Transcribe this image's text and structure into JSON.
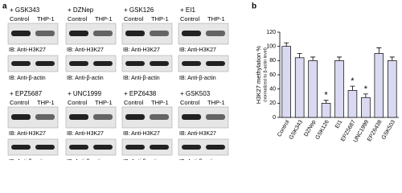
{
  "panel_a": {
    "label": "a",
    "blots": [
      {
        "treatment": "+ GSK343",
        "lanes": [
          "Control",
          "THP-1"
        ],
        "probe_top": "IB: Anti-H3K27",
        "probe_bottom": "IB: Anti-β-actin"
      },
      {
        "treatment": "+ DZNep",
        "lanes": [
          "Control",
          "THP-1"
        ],
        "probe_top": "IB: Anti-H3K27",
        "probe_bottom": "IB: Anti-β-actin"
      },
      {
        "treatment": "+ GSK126",
        "lanes": [
          "Control",
          "THP-1"
        ],
        "probe_top": "IB: Anti-H3K27",
        "probe_bottom": "IB: Anti-β-actin"
      },
      {
        "treatment": "+ EI1",
        "lanes": [
          "Control",
          "THP-1"
        ],
        "probe_top": "IB: Anti-H3K27",
        "probe_bottom": "IB: Anti-β-actin"
      },
      {
        "treatment": "+ EPZ5687",
        "lanes": [
          "Control",
          "THP-1"
        ],
        "probe_top": "IB: Anti-H3K27",
        "probe_bottom": "IB: Anti-β-actin"
      },
      {
        "treatment": "+ UNC1999",
        "lanes": [
          "Control",
          "THP-1"
        ],
        "probe_top": "IB: Anti-H3K27",
        "probe_bottom": "IB: Anti-β-actin"
      },
      {
        "treatment": "+ EPZ6438",
        "lanes": [
          "Control",
          "THP-1"
        ],
        "probe_top": "IB: Anti-H3K27",
        "probe_bottom": "IB: Anti-β-actin"
      },
      {
        "treatment": "+ GSK503",
        "lanes": [
          "Control",
          "THP-1"
        ],
        "probe_top": "IB: Anti-H3K27",
        "probe_bottom": "IB: Anti-β-actin"
      }
    ]
  },
  "panel_b": {
    "label": "b"
  },
  "chart_data": {
    "type": "bar",
    "y_label": "H3K27 methylation %",
    "y_sublabel": "(normalized to β-actin level)",
    "categories": [
      "Control",
      "GSK343",
      "DZNep",
      "GSK126",
      "EI1",
      "EPZ5687",
      "UNC1999",
      "EPZ6438",
      "GSK503"
    ],
    "values": [
      100,
      84,
      80,
      20,
      80,
      38,
      28,
      90,
      80
    ],
    "errors": [
      5,
      6,
      5,
      4,
      5,
      6,
      5,
      8,
      5
    ],
    "markers": [
      null,
      null,
      null,
      "*",
      null,
      "*",
      "*",
      null,
      null
    ],
    "color": "#d9d9f2",
    "ylim": [
      0,
      120
    ],
    "yticks": [
      0,
      20,
      40,
      60,
      80,
      100,
      120
    ]
  }
}
